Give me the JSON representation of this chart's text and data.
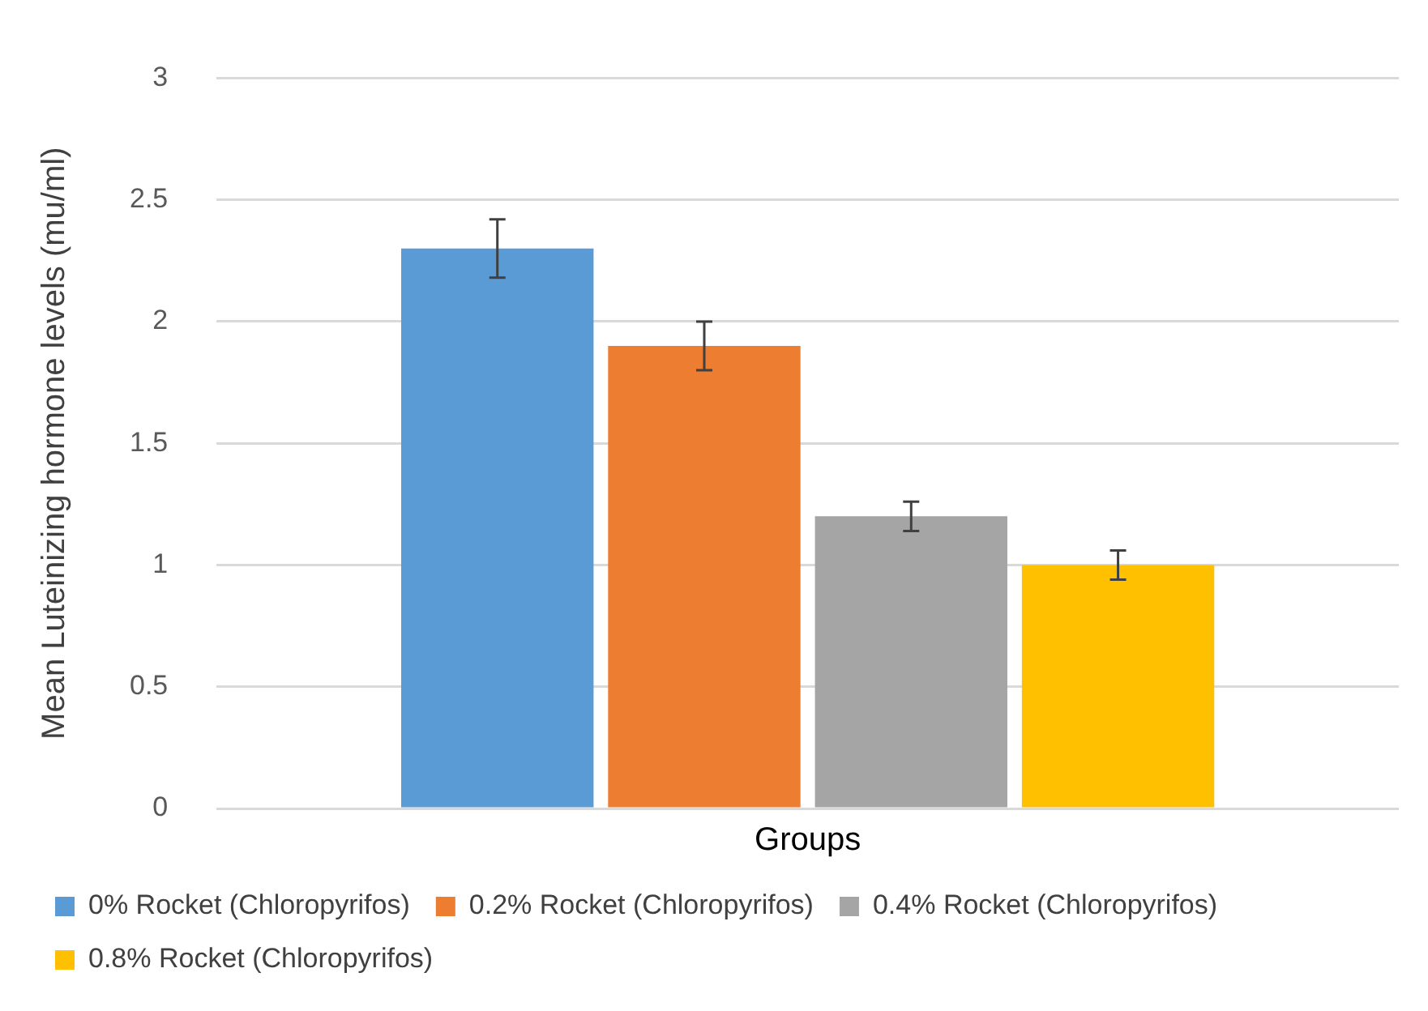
{
  "chart_data": {
    "type": "bar",
    "xlabel": "Groups",
    "ylabel": "Mean Luteinizing hormone levels (mu/ml)",
    "categories": [
      null
    ],
    "series": [
      {
        "name": "0% Rocket (Chloropyrifos)",
        "color": "#5b9bd5",
        "values": [
          2.3
        ],
        "errors": [
          0.12
        ]
      },
      {
        "name": "0.2% Rocket (Chloropyrifos)",
        "color": "#ed7d31",
        "values": [
          1.9
        ],
        "errors": [
          0.1
        ]
      },
      {
        "name": "0.4% Rocket (Chloropyrifos)",
        "color": "#a5a5a5",
        "values": [
          1.2
        ],
        "errors": [
          0.06
        ]
      },
      {
        "name": "0.8% Rocket (Chloropyrifos)",
        "color": "#ffc000",
        "values": [
          1.0
        ],
        "errors": [
          0.06
        ]
      }
    ],
    "ylim": [
      0,
      3
    ],
    "yticks": [
      0,
      0.5,
      1,
      1.5,
      2,
      2.5,
      3
    ],
    "grid": "y",
    "legend": "bottom"
  }
}
